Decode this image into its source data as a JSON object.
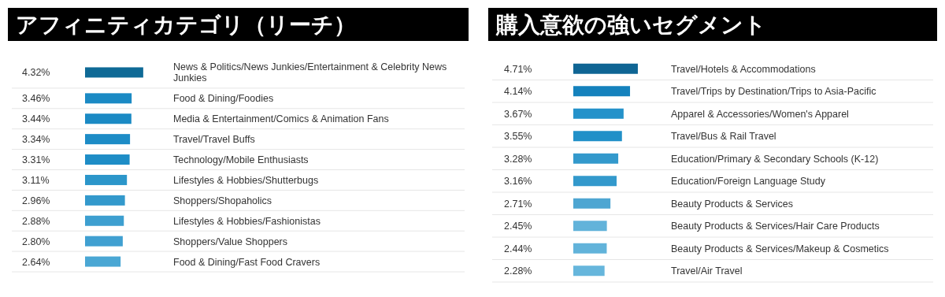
{
  "chart_data": [
    {
      "type": "bar",
      "orientation": "horizontal",
      "title": "アフィニティカテゴリ（リーチ）",
      "categories": [
        "News & Politics/News Junkies/Entertainment & Celebrity News Junkies",
        "Food & Dining/Foodies",
        "Media & Entertainment/Comics & Animation Fans",
        "Travel/Travel Buffs",
        "Technology/Mobile Enthusiasts",
        "Lifestyles & Hobbies/Shutterbugs",
        "Shoppers/Shopaholics",
        "Lifestyles & Hobbies/Fashionistas",
        "Shoppers/Value Shoppers",
        "Food & Dining/Fast Food Cravers"
      ],
      "values": [
        4.32,
        3.46,
        3.44,
        3.34,
        3.31,
        3.11,
        2.96,
        2.88,
        2.8,
        2.64
      ],
      "value_labels": [
        "4.32%",
        "3.46%",
        "3.44%",
        "3.34%",
        "3.31%",
        "3.11%",
        "2.96%",
        "2.88%",
        "2.80%",
        "2.64%"
      ],
      "colors": [
        "#0f6a96",
        "#1b8ac4",
        "#1b8ac4",
        "#1d8cc6",
        "#1e8dc6",
        "#2b96ca",
        "#3399cc",
        "#3d9fd0",
        "#40a0d1",
        "#4aa7d4"
      ]
    },
    {
      "type": "bar",
      "orientation": "horizontal",
      "title": "購入意欲の強いセグメント",
      "categories": [
        "Travel/Hotels & Accommodations",
        "Travel/Trips by Destination/Trips to Asia-Pacific",
        "Apparel & Accessories/Women's Apparel",
        "Travel/Bus & Rail Travel",
        "Education/Primary & Secondary Schools (K-12)",
        "Education/Foreign Language Study",
        "Beauty Products & Services",
        "Beauty Products & Services/Hair Care Products",
        "Beauty Products & Services/Makeup & Cosmetics",
        "Travel/Air Travel"
      ],
      "values": [
        4.71,
        4.14,
        3.67,
        3.55,
        3.28,
        3.16,
        2.71,
        2.45,
        2.44,
        2.28
      ],
      "value_labels": [
        "4.71%",
        "4.14%",
        "3.67%",
        "3.55%",
        "3.28%",
        "3.16%",
        "2.71%",
        "2.45%",
        "2.44%",
        "2.28%"
      ],
      "colors": [
        "#0f6594",
        "#1582bd",
        "#2592ca",
        "#2190c8",
        "#3399cc",
        "#3399cc",
        "#4ea6d2",
        "#62b3da",
        "#62b3da",
        "#66b6dc"
      ]
    }
  ]
}
